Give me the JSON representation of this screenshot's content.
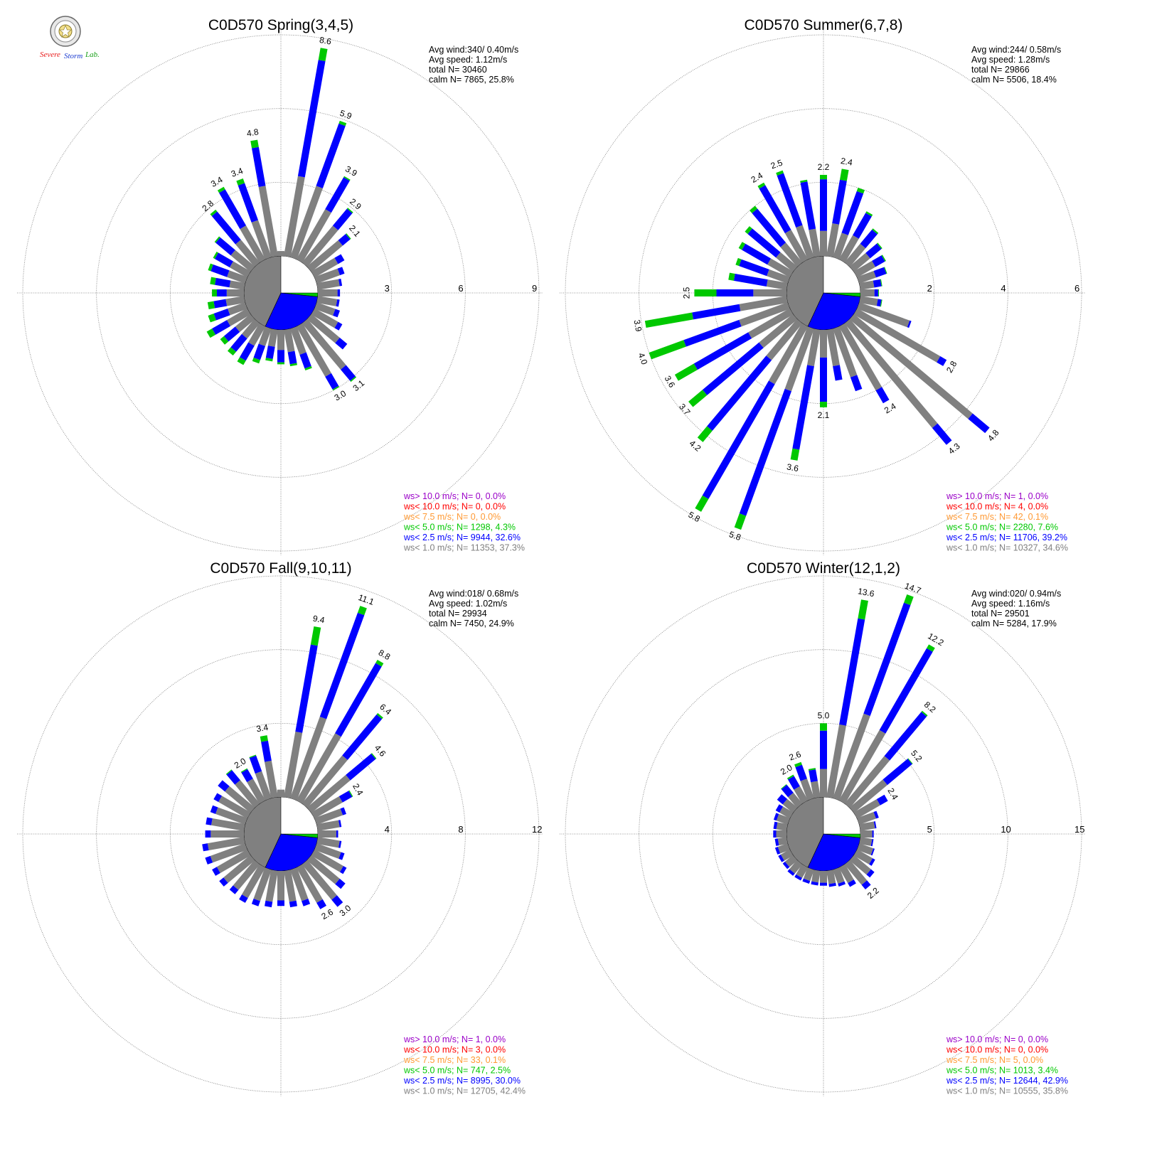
{
  "logo": {
    "part1": "Severe",
    "part2": "Storm",
    "part3": "Lab."
  },
  "chart_data": [
    {
      "type": "windrose",
      "title": "C0D570 Spring(3,4,5)",
      "ring_labels": [
        "3",
        "6",
        "9"
      ],
      "rmax": 9,
      "stats": [
        "Avg wind:340/ 0.40m/s",
        "Avg speed: 1.12m/s",
        "total N=      30460",
        "calm N=   7865,  25.8%"
      ],
      "calm_split": [
        0.5,
        0.35,
        0.15
      ],
      "legend": [
        {
          "text": "ws> 10.0 m/s; N=      0,  0.0%",
          "color": "#9a00c8"
        },
        {
          "text": "ws< 10.0 m/s; N=      0,  0.0%",
          "color": "#ff0000"
        },
        {
          "text": "ws<  7.5 m/s; N=      0,  0.0%",
          "color": "#ff9933"
        },
        {
          "text": "ws<  5.0 m/s; N=  1298,  4.3%",
          "color": "#00c800"
        },
        {
          "text": "ws<  2.5 m/s; N=  9944, 32.6%",
          "color": "#0000ff"
        },
        {
          "text": "ws<  1.0 m/s; N= 11353, 37.3%",
          "color": "#808080"
        }
      ],
      "directions": [
        0,
        10,
        20,
        30,
        40,
        50,
        60,
        70,
        80,
        90,
        100,
        110,
        120,
        130,
        140,
        150,
        160,
        170,
        180,
        190,
        200,
        210,
        220,
        230,
        240,
        250,
        260,
        270,
        280,
        290,
        300,
        310,
        320,
        330,
        340,
        350
      ],
      "totals": [
        0.2,
        8.6,
        5.9,
        3.9,
        2.9,
        2.1,
        1.4,
        1.2,
        1.0,
        0.9,
        0.9,
        1.0,
        1.3,
        1.9,
        3.1,
        3.0,
        1.8,
        1.5,
        1.4,
        1.3,
        1.5,
        1.8,
        1.7,
        1.6,
        1.9,
        1.6,
        1.5,
        1.3,
        1.4,
        1.6,
        1.6,
        1.9,
        2.8,
        3.4,
        3.4,
        4.8
      ],
      "green": [
        0,
        0.5,
        0.12,
        0.05,
        0.05,
        0.04,
        0,
        0,
        0,
        0,
        0,
        0,
        0,
        0,
        0.05,
        0.05,
        0.08,
        0.08,
        0.08,
        0.1,
        0.15,
        0.2,
        0.2,
        0.2,
        0.25,
        0.25,
        0.25,
        0.2,
        0.2,
        0.12,
        0.08,
        0.06,
        0.1,
        0.12,
        0.2,
        0.3
      ],
      "blue": [
        0,
        4.8,
        2.7,
        1.5,
        0.9,
        0.4,
        0.3,
        0.2,
        0.1,
        0.1,
        0.1,
        0.2,
        0.2,
        0.4,
        0.6,
        0.6,
        0.6,
        0.5,
        0.5,
        0.5,
        0.6,
        0.7,
        0.7,
        0.6,
        0.7,
        0.6,
        0.5,
        0.4,
        0.6,
        0.7,
        0.7,
        0.8,
        1.5,
        1.7,
        1.6,
        1.6
      ],
      "labels": {
        "10": "8.6",
        "20": "5.9",
        "30": "3.9",
        "40": "2.9",
        "50": "2.1",
        "140": "3.1",
        "150": "3.0",
        "320": "2.8",
        "330": "3.4",
        "340": "3.4",
        "350": "4.8"
      }
    },
    {
      "type": "windrose",
      "title": "C0D570 Summer(6,7,8)",
      "ring_labels": [
        "2",
        "4",
        "6"
      ],
      "rmax": 6,
      "stats": [
        "Avg wind:244/ 0.58m/s",
        "Avg speed: 1.28m/s",
        "total N=      29866",
        "calm N=   5506,  18.4%"
      ],
      "calm_split": [
        0.5,
        0.35,
        0.15
      ],
      "legend": [
        {
          "text": "ws> 10.0 m/s; N=      1,  0.0%",
          "color": "#9a00c8"
        },
        {
          "text": "ws< 10.0 m/s; N=      4,  0.0%",
          "color": "#ff0000"
        },
        {
          "text": "ws<  7.5 m/s; N=     42,  0.1%",
          "color": "#ff9933"
        },
        {
          "text": "ws<  5.0 m/s; N=  2280,  7.6%",
          "color": "#00c800"
        },
        {
          "text": "ws<  2.5 m/s; N= 11706, 39.2%",
          "color": "#0000ff"
        },
        {
          "text": "ws<  1.0 m/s; N= 10327, 34.6%",
          "color": "#808080"
        }
      ],
      "directions": [
        0,
        10,
        20,
        30,
        40,
        50,
        60,
        70,
        80,
        90,
        100,
        110,
        120,
        130,
        140,
        150,
        160,
        170,
        180,
        190,
        200,
        210,
        220,
        230,
        240,
        250,
        260,
        270,
        280,
        290,
        300,
        310,
        320,
        330,
        340,
        350
      ],
      "totals": [
        2.2,
        2.4,
        2.0,
        1.5,
        1.2,
        1.0,
        0.9,
        0.8,
        0.6,
        0.5,
        0.6,
        1.5,
        2.8,
        4.8,
        4.3,
        2.4,
        1.8,
        1.4,
        2.1,
        3.6,
        5.8,
        5.8,
        4.2,
        3.7,
        3.6,
        4.0,
        3.9,
        2.5,
        1.6,
        1.5,
        1.6,
        1.7,
        2.0,
        2.4,
        2.5,
        2.1
      ],
      "green": [
        0.12,
        0.3,
        0.1,
        0.05,
        0.04,
        0.03,
        0.03,
        0.02,
        0.02,
        0.02,
        0.02,
        0,
        0,
        0,
        0,
        0,
        0,
        0,
        0.15,
        0.3,
        0.4,
        0.4,
        0.4,
        0.5,
        0.6,
        1.0,
        1.3,
        0.6,
        0.15,
        0.1,
        0.1,
        0.1,
        0.1,
        0.08,
        0.08,
        0.05
      ],
      "blue": [
        1.4,
        1.2,
        1.2,
        0.7,
        0.5,
        0.4,
        0.3,
        0.3,
        0.2,
        0.1,
        0.1,
        0.05,
        0.2,
        0.6,
        0.6,
        0.4,
        0.4,
        0.4,
        1.2,
        2.3,
        3.6,
        3.6,
        2.5,
        2.0,
        1.7,
        1.6,
        1.3,
        1.0,
        0.9,
        0.8,
        0.8,
        1.0,
        1.2,
        1.4,
        1.5,
        1.3
      ],
      "labels": {
        "0": "2.2",
        "10": "2.4",
        "130": "4.8",
        "140": "4.3",
        "150": "2.4",
        "180": "2.1",
        "190": "3.6",
        "200": "5.8",
        "210": "5.8",
        "220": "4.2",
        "230": "3.7",
        "240": "3.6",
        "250": "4.0",
        "260": "3.9",
        "270": "2.5",
        "330": "2.4",
        "340": "2.5",
        "120": "2.8"
      }
    },
    {
      "type": "windrose",
      "title": "C0D570 Fall(9,10,11)",
      "ring_labels": [
        "4",
        "8",
        "12"
      ],
      "rmax": 12,
      "stats": [
        "Avg wind:018/ 0.68m/s",
        "Avg speed: 1.02m/s",
        "total N=      29934",
        "calm N=   7450,  24.9%"
      ],
      "calm_split": [
        0.5,
        0.35,
        0.15
      ],
      "legend": [
        {
          "text": "ws> 10.0 m/s; N=      1,  0.0%",
          "color": "#9a00c8"
        },
        {
          "text": "ws< 10.0 m/s; N=      3,  0.0%",
          "color": "#ff0000"
        },
        {
          "text": "ws<  7.5 m/s; N=     33,  0.1%",
          "color": "#ff9933"
        },
        {
          "text": "ws<  5.0 m/s; N=   747,  2.5%",
          "color": "#00c800"
        },
        {
          "text": "ws<  2.5 m/s; N=  8995, 30.0%",
          "color": "#0000ff"
        },
        {
          "text": "ws<  1.0 m/s; N= 12705, 42.4%",
          "color": "#808080"
        }
      ],
      "directions": [
        0,
        10,
        20,
        30,
        40,
        50,
        60,
        70,
        80,
        90,
        100,
        110,
        120,
        130,
        140,
        150,
        160,
        170,
        180,
        190,
        200,
        210,
        220,
        230,
        240,
        250,
        260,
        270,
        280,
        290,
        300,
        310,
        320,
        330,
        340,
        350
      ],
      "totals": [
        0.4,
        9.4,
        11.1,
        8.8,
        6.4,
        4.6,
        2.4,
        1.7,
        1.3,
        1.1,
        1.3,
        1.6,
        2.0,
        2.4,
        3.0,
        2.6,
        2.1,
        2.0,
        1.9,
        2.0,
        2.1,
        2.2,
        2.1,
        2.2,
        2.2,
        2.3,
        2.3,
        2.1,
        2.1,
        2.0,
        2.1,
        2.3,
        2.4,
        2.0,
        2.5,
        3.4
      ],
      "green": [
        0,
        1.0,
        0.4,
        0.2,
        0.1,
        0.05,
        0.05,
        0,
        0,
        0,
        0,
        0,
        0,
        0,
        0,
        0,
        0,
        0,
        0,
        0,
        0,
        0,
        0,
        0,
        0,
        0,
        0,
        0,
        0,
        0,
        0,
        0,
        0.05,
        0.05,
        0.05,
        0.3
      ],
      "blue": [
        0,
        4.8,
        6.0,
        4.4,
        2.9,
        1.8,
        0.6,
        0.2,
        0.1,
        0.1,
        0.1,
        0.2,
        0.2,
        0.4,
        0.5,
        0.4,
        0.3,
        0.3,
        0.3,
        0.3,
        0.3,
        0.3,
        0.3,
        0.3,
        0.3,
        0.3,
        0.3,
        0.3,
        0.3,
        0.3,
        0.3,
        0.5,
        0.7,
        0.6,
        0.9,
        1.1
      ],
      "labels": {
        "10": "9.4",
        "20": "11.1",
        "30": "8.8",
        "40": "6.4",
        "50": "4.6",
        "60": "2.4",
        "140": "3.0",
        "150": "2.6",
        "330": "2.0",
        "350": "3.4"
      }
    },
    {
      "type": "windrose",
      "title": "C0D570 Winter(12,1,2)",
      "ring_labels": [
        "5",
        "10",
        "15"
      ],
      "rmax": 15,
      "stats": [
        "Avg wind:020/ 0.94m/s",
        "Avg speed: 1.16m/s",
        "total N=      29501",
        "calm N=   5284,  17.9%"
      ],
      "calm_split": [
        0.5,
        0.35,
        0.15
      ],
      "legend": [
        {
          "text": "ws> 10.0 m/s; N=      0,  0.0%",
          "color": "#9a00c8"
        },
        {
          "text": "ws< 10.0 m/s; N=      0,  0.0%",
          "color": "#ff0000"
        },
        {
          "text": "ws<  7.5 m/s; N=      5,  0.0%",
          "color": "#ff9933"
        },
        {
          "text": "ws<  5.0 m/s; N=  1013,  3.4%",
          "color": "#00c800"
        },
        {
          "text": "ws<  2.5 m/s; N= 12644, 42.9%",
          "color": "#0000ff"
        },
        {
          "text": "ws<  1.0 m/s; N= 10555, 35.8%",
          "color": "#808080"
        }
      ],
      "directions": [
        0,
        10,
        20,
        30,
        40,
        50,
        60,
        70,
        80,
        90,
        100,
        110,
        120,
        130,
        140,
        150,
        160,
        170,
        180,
        190,
        200,
        210,
        220,
        230,
        240,
        250,
        260,
        270,
        280,
        290,
        300,
        310,
        320,
        330,
        340,
        350
      ],
      "totals": [
        5.0,
        13.6,
        14.7,
        12.2,
        8.2,
        5.2,
        2.4,
        1.4,
        1.1,
        0.9,
        0.9,
        1.1,
        1.4,
        1.8,
        2.2,
        1.5,
        1.2,
        1.1,
        1.0,
        1.0,
        1.0,
        1.0,
        1.0,
        0.9,
        0.9,
        0.9,
        0.8,
        0.9,
        0.9,
        1.0,
        1.1,
        1.4,
        1.7,
        2.0,
        2.6,
        2.0
      ],
      "green": [
        0.5,
        1.3,
        0.6,
        0.3,
        0.1,
        0.05,
        0,
        0,
        0,
        0,
        0,
        0,
        0,
        0,
        0,
        0,
        0,
        0,
        0,
        0,
        0,
        0,
        0,
        0,
        0,
        0,
        0,
        0,
        0,
        0,
        0,
        0,
        0.05,
        0.1,
        0.2,
        0.1
      ],
      "blue": [
        2.6,
        7.3,
        8.0,
        6.4,
        3.9,
        2.2,
        0.6,
        0.2,
        0.1,
        0.1,
        0.1,
        0.1,
        0.2,
        0.3,
        0.4,
        0.3,
        0.2,
        0.2,
        0.2,
        0.2,
        0.2,
        0.2,
        0.2,
        0.2,
        0.2,
        0.2,
        0.2,
        0.2,
        0.2,
        0.2,
        0.3,
        0.5,
        0.7,
        0.8,
        1.0,
        0.8
      ],
      "labels": {
        "0": "5.0",
        "10": "13.6",
        "20": "14.7",
        "30": "12.2",
        "40": "8.2",
        "50": "5.2",
        "60": "2.4",
        "140": "2.2",
        "330": "2.0",
        "340": "2.6"
      }
    }
  ]
}
